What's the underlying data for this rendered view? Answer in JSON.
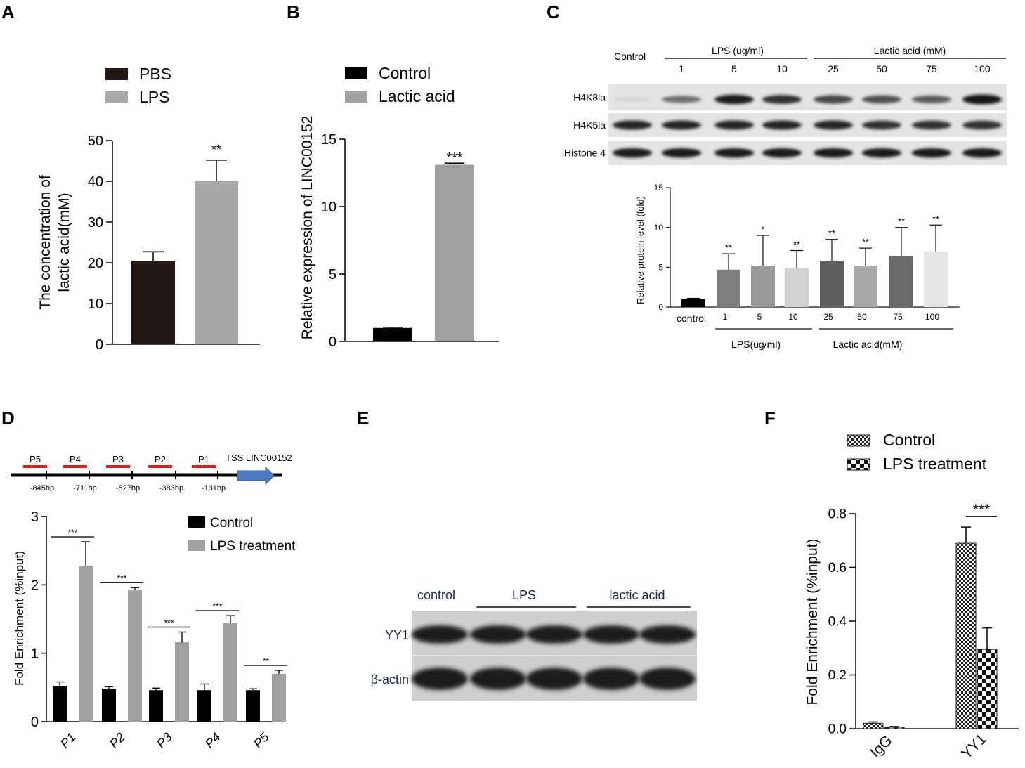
{
  "panels": {
    "A": {
      "label": "A",
      "chart_data": {
        "type": "bar",
        "categories": [
          "PBS",
          "LPS"
        ],
        "values": [
          20.5,
          40.0
        ],
        "errors": [
          2.2,
          5.2
        ],
        "significance": [
          "",
          "**"
        ],
        "legend": [
          "PBS",
          "LPS"
        ],
        "ylabel_lines": [
          "The concentration of",
          "lactic acid(mM)"
        ],
        "ylim": [
          0,
          50
        ],
        "yticks": [
          "0",
          "10",
          "20",
          "30",
          "40",
          "50"
        ],
        "colors": [
          "#231815",
          "#a7a7a7"
        ]
      }
    },
    "B": {
      "label": "B",
      "chart_data": {
        "type": "bar",
        "categories": [
          "Control",
          "Lactic acid"
        ],
        "values": [
          1.0,
          13.1
        ],
        "errors": [
          0.05,
          0.12
        ],
        "significance": [
          "",
          "***"
        ],
        "legend": [
          "Control",
          "Lactic acid"
        ],
        "ylabel": "Relative expression of LINC00152",
        "ylim": [
          0,
          15
        ],
        "yticks": [
          "0",
          "5",
          "10",
          "15"
        ],
        "colors": [
          "#000000",
          "#a0a0a0"
        ]
      }
    },
    "C": {
      "label": "C",
      "blot": {
        "control": "Control",
        "lps_header": "LPS (ug/ml)",
        "lactic_header": "Lactic acid (mM)",
        "lps_doses": [
          "1",
          "5",
          "10"
        ],
        "lactic_doses": [
          "25",
          "50",
          "75",
          "100"
        ],
        "rows": [
          "H4K8la",
          "H4K5la",
          "Histone 4"
        ]
      },
      "chart_data": {
        "type": "bar",
        "categories": [
          "control",
          "1",
          "5",
          "10",
          "25",
          "50",
          "75",
          "100"
        ],
        "values": [
          1.0,
          4.7,
          5.2,
          4.9,
          5.8,
          5.2,
          6.4,
          7.0
        ],
        "errors": [
          0.1,
          2.0,
          3.8,
          2.2,
          2.7,
          2.2,
          3.6,
          3.3
        ],
        "significance": [
          "",
          "**",
          "*",
          "**",
          "**",
          "**",
          "**",
          "**"
        ],
        "group_labels": [
          "LPS(ug/ml)",
          "Lactic acid(mM)"
        ],
        "ylabel": "Relative protein level (fold)",
        "ylim": [
          0,
          15
        ],
        "yticks": [
          "0",
          "5",
          "10",
          "15"
        ],
        "colors": [
          "#000000",
          "#7d7d7d",
          "#9a9a9a",
          "#d2d2d2",
          "#5e5e5e",
          "#a8a8a8",
          "#6a6a6a",
          "#e6e6e6"
        ]
      }
    },
    "D": {
      "label": "D",
      "schematic": {
        "primers": [
          "P5",
          "P4",
          "P3",
          "P2",
          "P1"
        ],
        "positions": [
          "-845bp",
          "-711bp",
          "-527bp",
          "-383bp",
          "-131bp"
        ],
        "tss": "TSS LINC00152"
      },
      "chart_data": {
        "type": "bar",
        "categories": [
          "P1",
          "P2",
          "P3",
          "P4",
          "P5"
        ],
        "series": [
          {
            "name": "Control",
            "values": [
              0.52,
              0.48,
              0.46,
              0.46,
              0.46
            ],
            "errors": [
              0.06,
              0.03,
              0.03,
              0.09,
              0.02
            ]
          },
          {
            "name": "LPS treatment",
            "values": [
              2.28,
              1.92,
              1.16,
              1.44,
              0.7
            ],
            "errors": [
              0.35,
              0.04,
              0.15,
              0.11,
              0.05
            ]
          }
        ],
        "significance": [
          "***",
          "***",
          "***",
          "***",
          "**"
        ],
        "ylabel": "Fold Enrichment (%input)",
        "ylim": [
          0,
          3
        ],
        "yticks": [
          "0",
          "1",
          "2",
          "3"
        ],
        "colors": [
          "#000000",
          "#a0a0a0"
        ]
      }
    },
    "E": {
      "label": "E",
      "blot": {
        "groups": [
          "control",
          "LPS",
          "lactic acid"
        ],
        "rows": [
          "YY1",
          "β-actin"
        ]
      }
    },
    "F": {
      "label": "F",
      "chart_data": {
        "type": "bar",
        "categories": [
          "IgG",
          "YY1"
        ],
        "series": [
          {
            "name": "Control",
            "values": [
              0.02,
              0.69
            ],
            "errors": [
              0.005,
              0.06
            ]
          },
          {
            "name": "LPS treatment",
            "values": [
              0.005,
              0.295
            ],
            "errors": [
              0.003,
              0.08
            ]
          }
        ],
        "significance": [
          "",
          "***"
        ],
        "ylabel": "Fold Enrichment (%input)",
        "ylim": [
          0,
          0.8
        ],
        "yticks": [
          "0.0",
          "0.2",
          "0.4",
          "0.6",
          "0.8"
        ],
        "patterns": [
          "fine-checker",
          "coarse-checker"
        ]
      }
    }
  }
}
